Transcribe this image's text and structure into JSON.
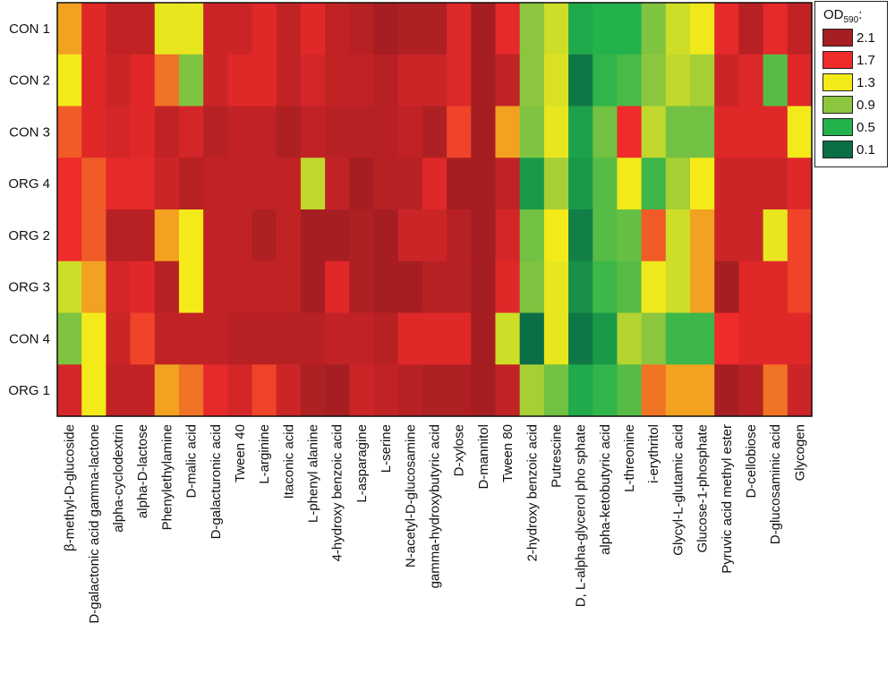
{
  "legend": {
    "title": "OD",
    "subscript": "590",
    "suffix": ":",
    "items": [
      {
        "label": "2.1",
        "color": "#a61e22"
      },
      {
        "label": "1.7",
        "color": "#ef2b2b"
      },
      {
        "label": "1.3",
        "color": "#f4ea1a"
      },
      {
        "label": "0.9",
        "color": "#8cc63f"
      },
      {
        "label": "0.5",
        "color": "#23b24c"
      },
      {
        "label": "0.1",
        "color": "#0c6e44"
      }
    ]
  },
  "chart_data": {
    "type": "heatmap",
    "rows": [
      "CON 1",
      "CON 2",
      "CON 3",
      "ORG 4",
      "ORG 2",
      "ORG 3",
      "CON 4",
      "ORG 1"
    ],
    "columns": [
      "β-methyl-D-glucoside",
      "D-galactonic acid gamma-lactone",
      "alpha-cyclodextrin",
      "alpha-D-lactose",
      "Phenylethylamine",
      "D-malic acid",
      "D-galacturonic acid",
      "Tween 40",
      "L-arginine",
      "Itaconic acid",
      "L-phenyl alanine",
      "4-hydroxy benzoic acid",
      "L-asparagine",
      "L-serine",
      "N-acetyl-D-glucosamine",
      "gamma-hydroxybutyric acid",
      "D-xylose",
      "D-mannitol",
      "Tween 80",
      "2-hydroxy benzoic acid",
      "Putrescine",
      "D, L-alpha-glycerol pho sphate",
      "alpha-ketobutyric acid",
      "L-threonine",
      "i-erythritol",
      "Glycyl-L-glutamic acid",
      "Glucose-1-phosphate",
      "Pyruvic acid methyl ester",
      "D-cellobiose",
      "D-glucosaminic acid",
      "Glycogen"
    ],
    "values": [
      [
        1.45,
        1.78,
        1.95,
        1.95,
        1.25,
        1.25,
        1.9,
        1.9,
        1.78,
        1.95,
        1.78,
        1.95,
        2.0,
        2.1,
        2.05,
        2.05,
        1.8,
        2.15,
        1.75,
        0.9,
        1.15,
        0.45,
        0.5,
        0.5,
        0.85,
        1.15,
        1.28,
        1.75,
        2.0,
        1.75,
        1.95
      ],
      [
        1.3,
        1.78,
        1.9,
        1.78,
        1.55,
        0.85,
        1.9,
        1.78,
        1.78,
        1.95,
        1.85,
        1.95,
        1.95,
        2.0,
        1.9,
        1.9,
        1.8,
        2.15,
        1.95,
        0.9,
        1.2,
        0.15,
        0.55,
        0.65,
        0.9,
        1.1,
        1.0,
        1.9,
        1.8,
        0.7,
        1.78
      ],
      [
        1.6,
        1.78,
        1.85,
        1.78,
        1.95,
        1.85,
        2.0,
        1.95,
        1.95,
        2.05,
        1.95,
        2.0,
        2.0,
        2.0,
        1.95,
        2.05,
        1.65,
        2.15,
        1.45,
        0.85,
        1.25,
        0.4,
        0.8,
        1.7,
        1.1,
        0.8,
        0.8,
        1.78,
        1.78,
        1.78,
        1.3
      ],
      [
        1.7,
        1.6,
        1.75,
        1.75,
        1.9,
        2.0,
        1.95,
        1.95,
        1.95,
        1.95,
        1.1,
        1.95,
        2.1,
        2.0,
        2.0,
        1.78,
        2.1,
        2.15,
        1.95,
        0.35,
        1.0,
        0.35,
        0.7,
        1.3,
        0.6,
        1.0,
        1.3,
        1.9,
        1.9,
        1.9,
        1.78
      ],
      [
        1.7,
        1.6,
        2.0,
        2.0,
        1.45,
        1.3,
        1.95,
        1.95,
        2.05,
        1.95,
        2.1,
        2.1,
        2.05,
        2.1,
        1.9,
        1.9,
        2.0,
        2.15,
        1.85,
        0.8,
        1.3,
        0.2,
        0.7,
        0.75,
        1.6,
        1.15,
        1.45,
        1.9,
        1.9,
        1.25,
        1.65
      ],
      [
        1.15,
        1.45,
        1.85,
        1.78,
        2.0,
        1.3,
        1.95,
        1.95,
        1.95,
        1.95,
        2.1,
        1.78,
        2.05,
        2.1,
        2.1,
        2.0,
        2.0,
        2.15,
        1.78,
        0.85,
        1.25,
        0.3,
        0.6,
        0.7,
        1.28,
        1.15,
        1.45,
        2.1,
        1.78,
        1.78,
        1.65
      ],
      [
        0.85,
        1.3,
        1.9,
        1.65,
        1.95,
        1.95,
        1.95,
        2.0,
        2.0,
        2.0,
        2.0,
        1.95,
        1.95,
        2.0,
        1.78,
        1.78,
        1.78,
        2.15,
        1.15,
        0.1,
        1.25,
        0.15,
        0.35,
        1.05,
        0.9,
        0.6,
        0.6,
        1.7,
        1.78,
        1.78,
        1.78
      ],
      [
        1.85,
        1.3,
        1.95,
        1.95,
        1.45,
        1.55,
        1.75,
        1.85,
        1.65,
        1.9,
        2.05,
        2.1,
        1.9,
        1.95,
        2.0,
        2.05,
        2.05,
        2.15,
        1.95,
        1.0,
        0.8,
        0.45,
        0.55,
        0.7,
        1.55,
        1.45,
        1.45,
        2.1,
        2.0,
        1.55,
        1.9
      ]
    ],
    "scale": [
      {
        "value": 2.1,
        "color": "#a61e22"
      },
      {
        "value": 1.7,
        "color": "#ef2b2b"
      },
      {
        "value": 1.3,
        "color": "#f4ea1a"
      },
      {
        "value": 0.9,
        "color": "#8cc63f"
      },
      {
        "value": 0.5,
        "color": "#23b24c"
      },
      {
        "value": 0.1,
        "color": "#0c6e44"
      }
    ],
    "colorbar_label": "OD590:",
    "colorbar_placement": "top-right, outside the plot area"
  }
}
